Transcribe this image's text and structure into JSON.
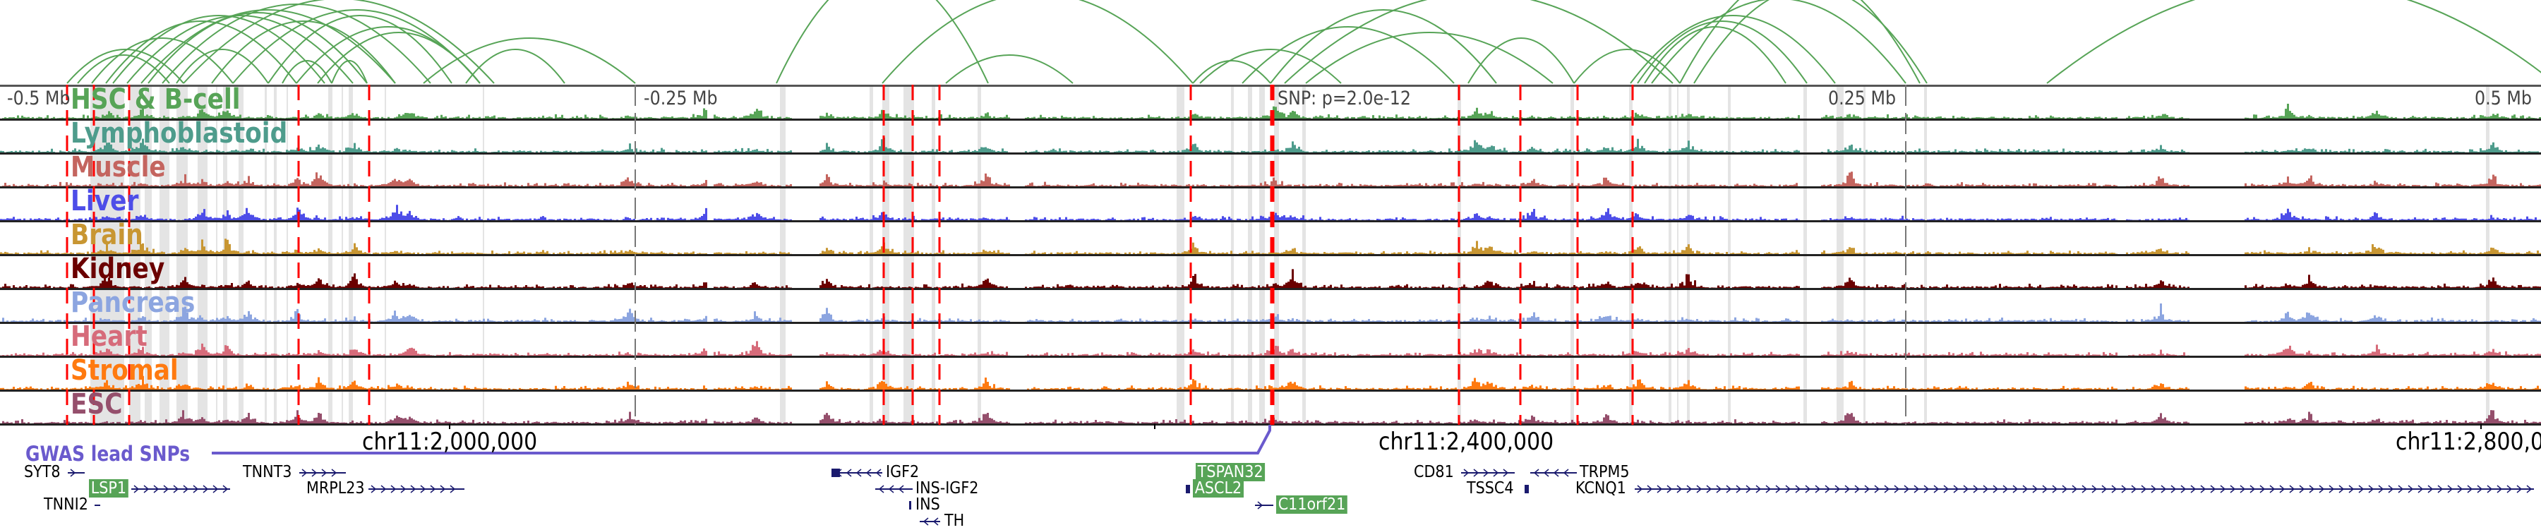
{
  "axis": {
    "ticks": [
      "-0.5 Mb",
      "-0.25 Mb",
      "0.25 Mb",
      "0.5 Mb"
    ],
    "snp_label": "SNP: p=2.0e-12"
  },
  "tracks": [
    {
      "label": "HSC & B-cell",
      "color": "#57a457"
    },
    {
      "label": "Lymphoblastoid",
      "color": "#4e9c8c"
    },
    {
      "label": "Muscle",
      "color": "#c4655f"
    },
    {
      "label": "Liver",
      "color": "#4d4de8"
    },
    {
      "label": "Brain",
      "color": "#c89632"
    },
    {
      "label": "Kidney",
      "color": "#6b0000"
    },
    {
      "label": "Pancreas",
      "color": "#8ca5e0"
    },
    {
      "label": "Heart",
      "color": "#d66b7a"
    },
    {
      "label": "Stromal",
      "color": "#ff7a10"
    },
    {
      "label": "ESC",
      "color": "#954f6c"
    }
  ],
  "coordinates": [
    "chr11:2,000,000",
    "chr11:2,400,000",
    "chr11:2,800,000"
  ],
  "gwas": {
    "label": "GWAS lead SNPs",
    "color": "#6a5acd"
  },
  "genes": [
    {
      "name": "SYT8",
      "highlighted": false
    },
    {
      "name": "TNNT3",
      "highlighted": false
    },
    {
      "name": "LSP1",
      "highlighted": true
    },
    {
      "name": "MRPL23",
      "highlighted": false
    },
    {
      "name": "TNNI2",
      "highlighted": false
    },
    {
      "name": "IGF2",
      "highlighted": false
    },
    {
      "name": "INS-IGF2",
      "highlighted": false
    },
    {
      "name": "INS",
      "highlighted": false
    },
    {
      "name": "TH",
      "highlighted": false
    },
    {
      "name": "TSPAN32",
      "highlighted": true
    },
    {
      "name": "ASCL2",
      "highlighted": true
    },
    {
      "name": "C11orf21",
      "highlighted": true
    },
    {
      "name": "CD81",
      "highlighted": false
    },
    {
      "name": "TRPM5",
      "highlighted": false
    },
    {
      "name": "TSSC4",
      "highlighted": false
    },
    {
      "name": "KCNQ1",
      "highlighted": false
    }
  ],
  "colors": {
    "arc": "#57a457",
    "snp_line": "#ff0000",
    "highlight": "#e4e4e4",
    "gene_strand": "#1a1a6e"
  }
}
